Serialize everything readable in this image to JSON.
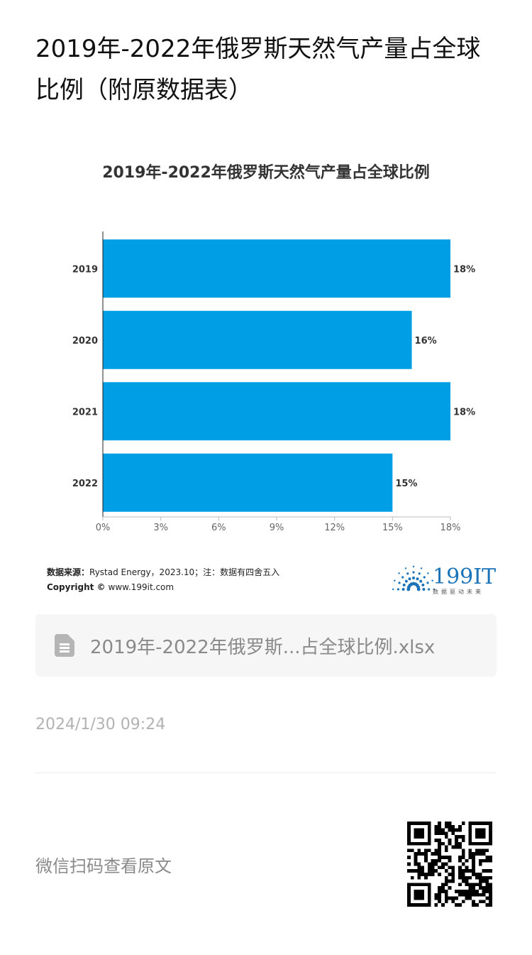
{
  "article": {
    "title": "2019年-2022年俄罗斯天然气产量占全球比例（附原数据表）",
    "attachment_name": "2019年-2022年俄罗斯...占全球比例.xlsx",
    "date": "2024/1/30 09:24",
    "scan_hint": "微信扫码查看原文"
  },
  "icons": {
    "file": "spreadsheet-file-icon",
    "qr": "qr-code"
  },
  "colors": {
    "bar": "#009fe5",
    "attachment_bg": "#f6f6f6",
    "logo_blue": "#1a72b8"
  },
  "chart_data": {
    "type": "bar",
    "orientation": "horizontal",
    "title": "2019年-2022年俄罗斯天然气产量占全球比例",
    "categories": [
      "2019",
      "2020",
      "2021",
      "2022"
    ],
    "values": [
      18,
      16,
      18,
      15
    ],
    "value_labels": [
      "18%",
      "16%",
      "18%",
      "15%"
    ],
    "xlim": [
      0,
      18
    ],
    "xticks": [
      "0%",
      "3%",
      "6%",
      "9%",
      "12%",
      "15%",
      "18%"
    ],
    "grid": false,
    "source_label": "数据来源：",
    "source_text": "Rystad Energy，2023.10；注：数据有四舍五入",
    "copyright_label": "Copyright ©",
    "copyright_text": "www.199it.com",
    "logo_text": "199IT",
    "logo_tagline": "数据驱动未来"
  }
}
